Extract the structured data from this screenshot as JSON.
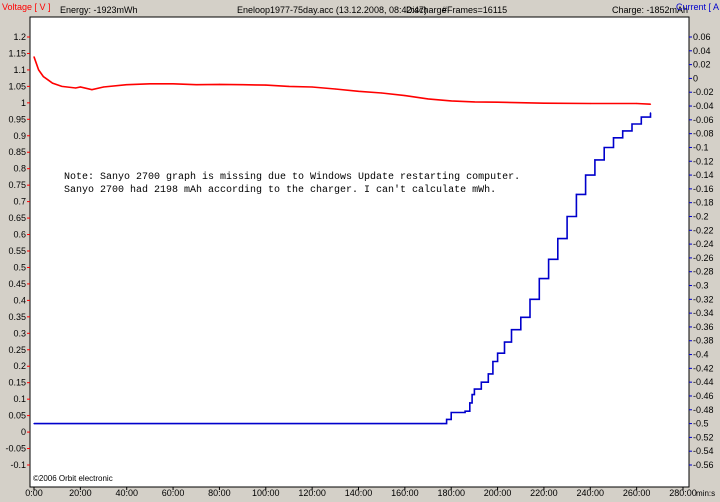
{
  "header": {
    "voltage_label": "Voltage [ V ]",
    "energy": "Energy: -1923mWh",
    "file_info": "Eneloop1977-75day.acc (13.12.2008, 08:42:47)",
    "mode": "Discharge",
    "frames": "#Frames=16115",
    "charge": "Charge: -1852mAh",
    "current_label": "Current [ A ]"
  },
  "footer": {
    "copyright": "©2006 Orbit electronic",
    "x_unit": "min:s"
  },
  "note": {
    "line1": "Note: Sanyo 2700 graph is missing due to Windows Update restarting computer.",
    "line2": "Sanyo 2700 had 2198 mAh according to the charger. I can't calculate mWh."
  },
  "chart_data": {
    "type": "line",
    "colors": {
      "voltage": "#ff0000",
      "current": "#0000cc",
      "left_axis": "#ff0000",
      "right_axis": "#0000cc"
    },
    "x_ticks": [
      "0:00",
      "20:00",
      "40:00",
      "60:00",
      "80:00",
      "100:00",
      "120:00",
      "140:00",
      "160:00",
      "180:00",
      "200:00",
      "220:00",
      "240:00",
      "260:00",
      "280:00"
    ],
    "xlim_minutes": [
      0,
      280
    ],
    "y_left_ticks": [
      "1.2",
      "1.15",
      "1.1",
      "1.05",
      "1",
      "0.95",
      "0.9",
      "0.85",
      "0.8",
      "0.75",
      "0.7",
      "0.65",
      "0.6",
      "0.55",
      "0.5",
      "0.45",
      "0.4",
      "0.35",
      "0.3",
      "0.25",
      "0.2",
      "0.15",
      "0.1",
      "0.05",
      "0",
      "-0.05",
      "-0.1"
    ],
    "ylim_left": [
      -0.1,
      1.2
    ],
    "y_right_ticks": [
      "0.06",
      "0.04",
      "0.02",
      "0",
      "-0.02",
      "-0.04",
      "-0.06",
      "-0.08",
      "-0.1",
      "-0.12",
      "-0.14",
      "-0.16",
      "-0.18",
      "-0.2",
      "-0.22",
      "-0.24",
      "-0.26",
      "-0.28",
      "-0.3",
      "-0.32",
      "-0.34",
      "-0.36",
      "-0.38",
      "-0.4",
      "-0.42",
      "-0.44",
      "-0.46",
      "-0.48",
      "-0.5",
      "-0.52",
      "-0.54",
      "-0.56"
    ],
    "ylim_right": [
      -0.56,
      0.06
    ],
    "grid": false,
    "series": [
      {
        "axis": "left",
        "color": "#ff0000",
        "points": [
          [
            0,
            1.14
          ],
          [
            1,
            1.12
          ],
          [
            2,
            1.1
          ],
          [
            4,
            1.08
          ],
          [
            6,
            1.07
          ],
          [
            8,
            1.06
          ],
          [
            12,
            1.05
          ],
          [
            18,
            1.045
          ],
          [
            20,
            1.048
          ],
          [
            25,
            1.04
          ],
          [
            30,
            1.048
          ],
          [
            40,
            1.055
          ],
          [
            50,
            1.058
          ],
          [
            60,
            1.058
          ],
          [
            70,
            1.055
          ],
          [
            80,
            1.056
          ],
          [
            90,
            1.055
          ],
          [
            100,
            1.054
          ],
          [
            110,
            1.05
          ],
          [
            120,
            1.048
          ],
          [
            130,
            1.042
          ],
          [
            140,
            1.035
          ],
          [
            150,
            1.03
          ],
          [
            160,
            1.022
          ],
          [
            170,
            1.012
          ],
          [
            180,
            1.006
          ],
          [
            190,
            1.003
          ],
          [
            200,
            1.002
          ],
          [
            220,
            0.999
          ],
          [
            240,
            0.998
          ],
          [
            260,
            0.998
          ],
          [
            266,
            0.996
          ]
        ]
      },
      {
        "axis": "right",
        "color": "#0000cc",
        "points": [
          [
            0,
            -0.5
          ],
          [
            176,
            -0.5
          ],
          [
            178,
            -0.494
          ],
          [
            180,
            -0.484
          ],
          [
            186,
            -0.482
          ],
          [
            188,
            -0.47
          ],
          [
            189,
            -0.458
          ],
          [
            190,
            -0.45
          ],
          [
            193,
            -0.44
          ],
          [
            196,
            -0.428
          ],
          [
            198,
            -0.41
          ],
          [
            200,
            -0.398
          ],
          [
            203,
            -0.382
          ],
          [
            206,
            -0.364
          ],
          [
            210,
            -0.346
          ],
          [
            214,
            -0.32
          ],
          [
            218,
            -0.29
          ],
          [
            222,
            -0.262
          ],
          [
            226,
            -0.232
          ],
          [
            230,
            -0.2
          ],
          [
            234,
            -0.168
          ],
          [
            238,
            -0.14
          ],
          [
            242,
            -0.118
          ],
          [
            246,
            -0.1
          ],
          [
            250,
            -0.086
          ],
          [
            254,
            -0.076
          ],
          [
            258,
            -0.066
          ],
          [
            262,
            -0.056
          ],
          [
            266,
            -0.05
          ]
        ]
      }
    ]
  }
}
